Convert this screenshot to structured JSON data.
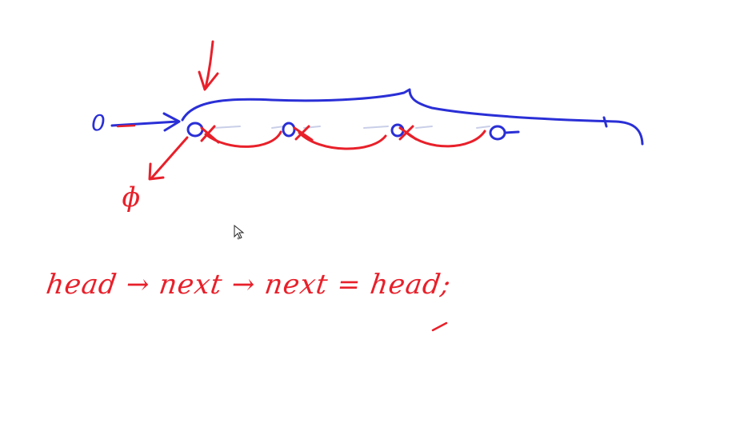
{
  "diagram": {
    "prev_label": "0",
    "null_label": "ɸ",
    "nodes": [
      "0",
      "0",
      "0",
      "0"
    ],
    "code_text": "head → next → next = head;",
    "colors": {
      "list_ink": "#2a2fd6",
      "reverse_ink": "#e8202a",
      "background": "#ffffff"
    }
  }
}
